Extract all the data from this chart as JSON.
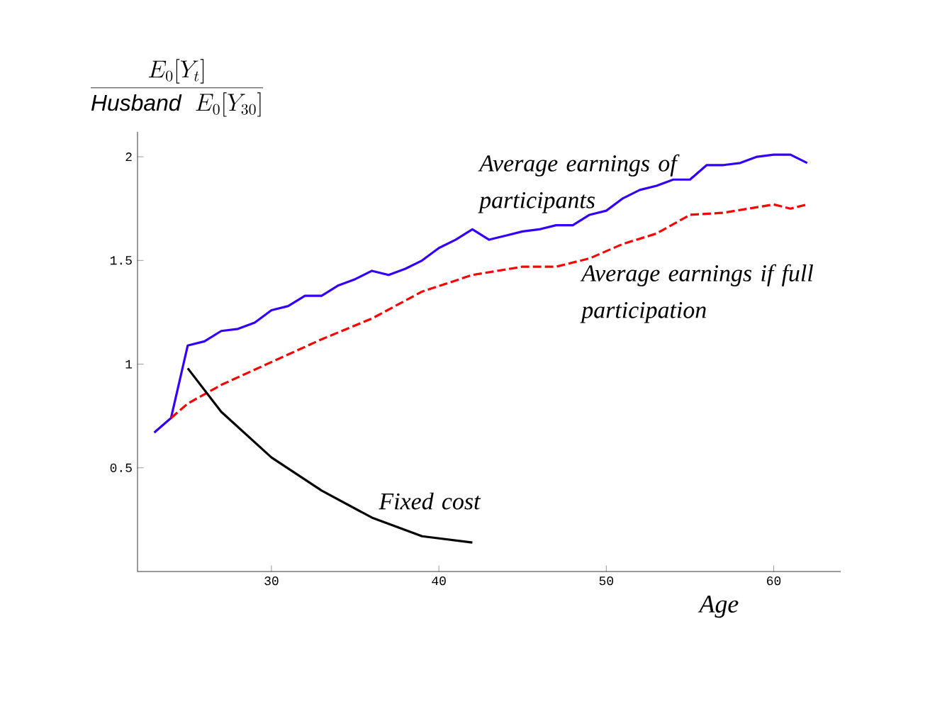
{
  "chart_data": {
    "type": "line",
    "xlabel": "Age",
    "ylabel": "\\frac{E_0[Y_t]}{\\mathit{Husband}\\;\\; E_0[Y_{30}]}",
    "xlim": [
      22,
      64
    ],
    "ylim": [
      0,
      2.12
    ],
    "xticks": [
      30,
      40,
      50,
      60
    ],
    "yticks": [
      0.5,
      1,
      1.5,
      2
    ],
    "series": [
      {
        "name": "Average earnings of participants",
        "color": "#3300ff",
        "line_style": "solid",
        "x": [
          23,
          24,
          25,
          26,
          27,
          28,
          29,
          30,
          31,
          32,
          33,
          34,
          35,
          36,
          37,
          38,
          39,
          40,
          41,
          42,
          43,
          44,
          45,
          46,
          47,
          48,
          49,
          50,
          51,
          52,
          53,
          54,
          55,
          56,
          57,
          58,
          59,
          60,
          61,
          62
        ],
        "values": [
          0.67,
          0.74,
          1.09,
          1.11,
          1.16,
          1.17,
          1.2,
          1.26,
          1.28,
          1.33,
          1.33,
          1.38,
          1.41,
          1.45,
          1.43,
          1.46,
          1.5,
          1.56,
          1.6,
          1.65,
          1.6,
          1.62,
          1.64,
          1.65,
          1.67,
          1.67,
          1.72,
          1.74,
          1.8,
          1.84,
          1.86,
          1.89,
          1.89,
          1.96,
          1.96,
          1.97,
          2.0,
          2.01,
          2.01,
          1.97
        ]
      },
      {
        "name": "Average earnings if full participation",
        "color": "#ff0000",
        "line_style": "dashed",
        "x": [
          24,
          25,
          27,
          30,
          33,
          36,
          39,
          42,
          45,
          47,
          49,
          51,
          53,
          55,
          57,
          60,
          61,
          62
        ],
        "values": [
          0.74,
          0.81,
          0.9,
          1.01,
          1.12,
          1.22,
          1.35,
          1.43,
          1.47,
          1.47,
          1.51,
          1.58,
          1.63,
          1.72,
          1.73,
          1.77,
          1.75,
          1.77
        ]
      },
      {
        "name": "Fixed cost",
        "color": "#000000",
        "line_style": "solid",
        "x": [
          25,
          27,
          30,
          33,
          36,
          39,
          42
        ],
        "values": [
          0.98,
          0.77,
          0.55,
          0.39,
          0.26,
          0.17,
          0.14
        ]
      }
    ]
  }
}
